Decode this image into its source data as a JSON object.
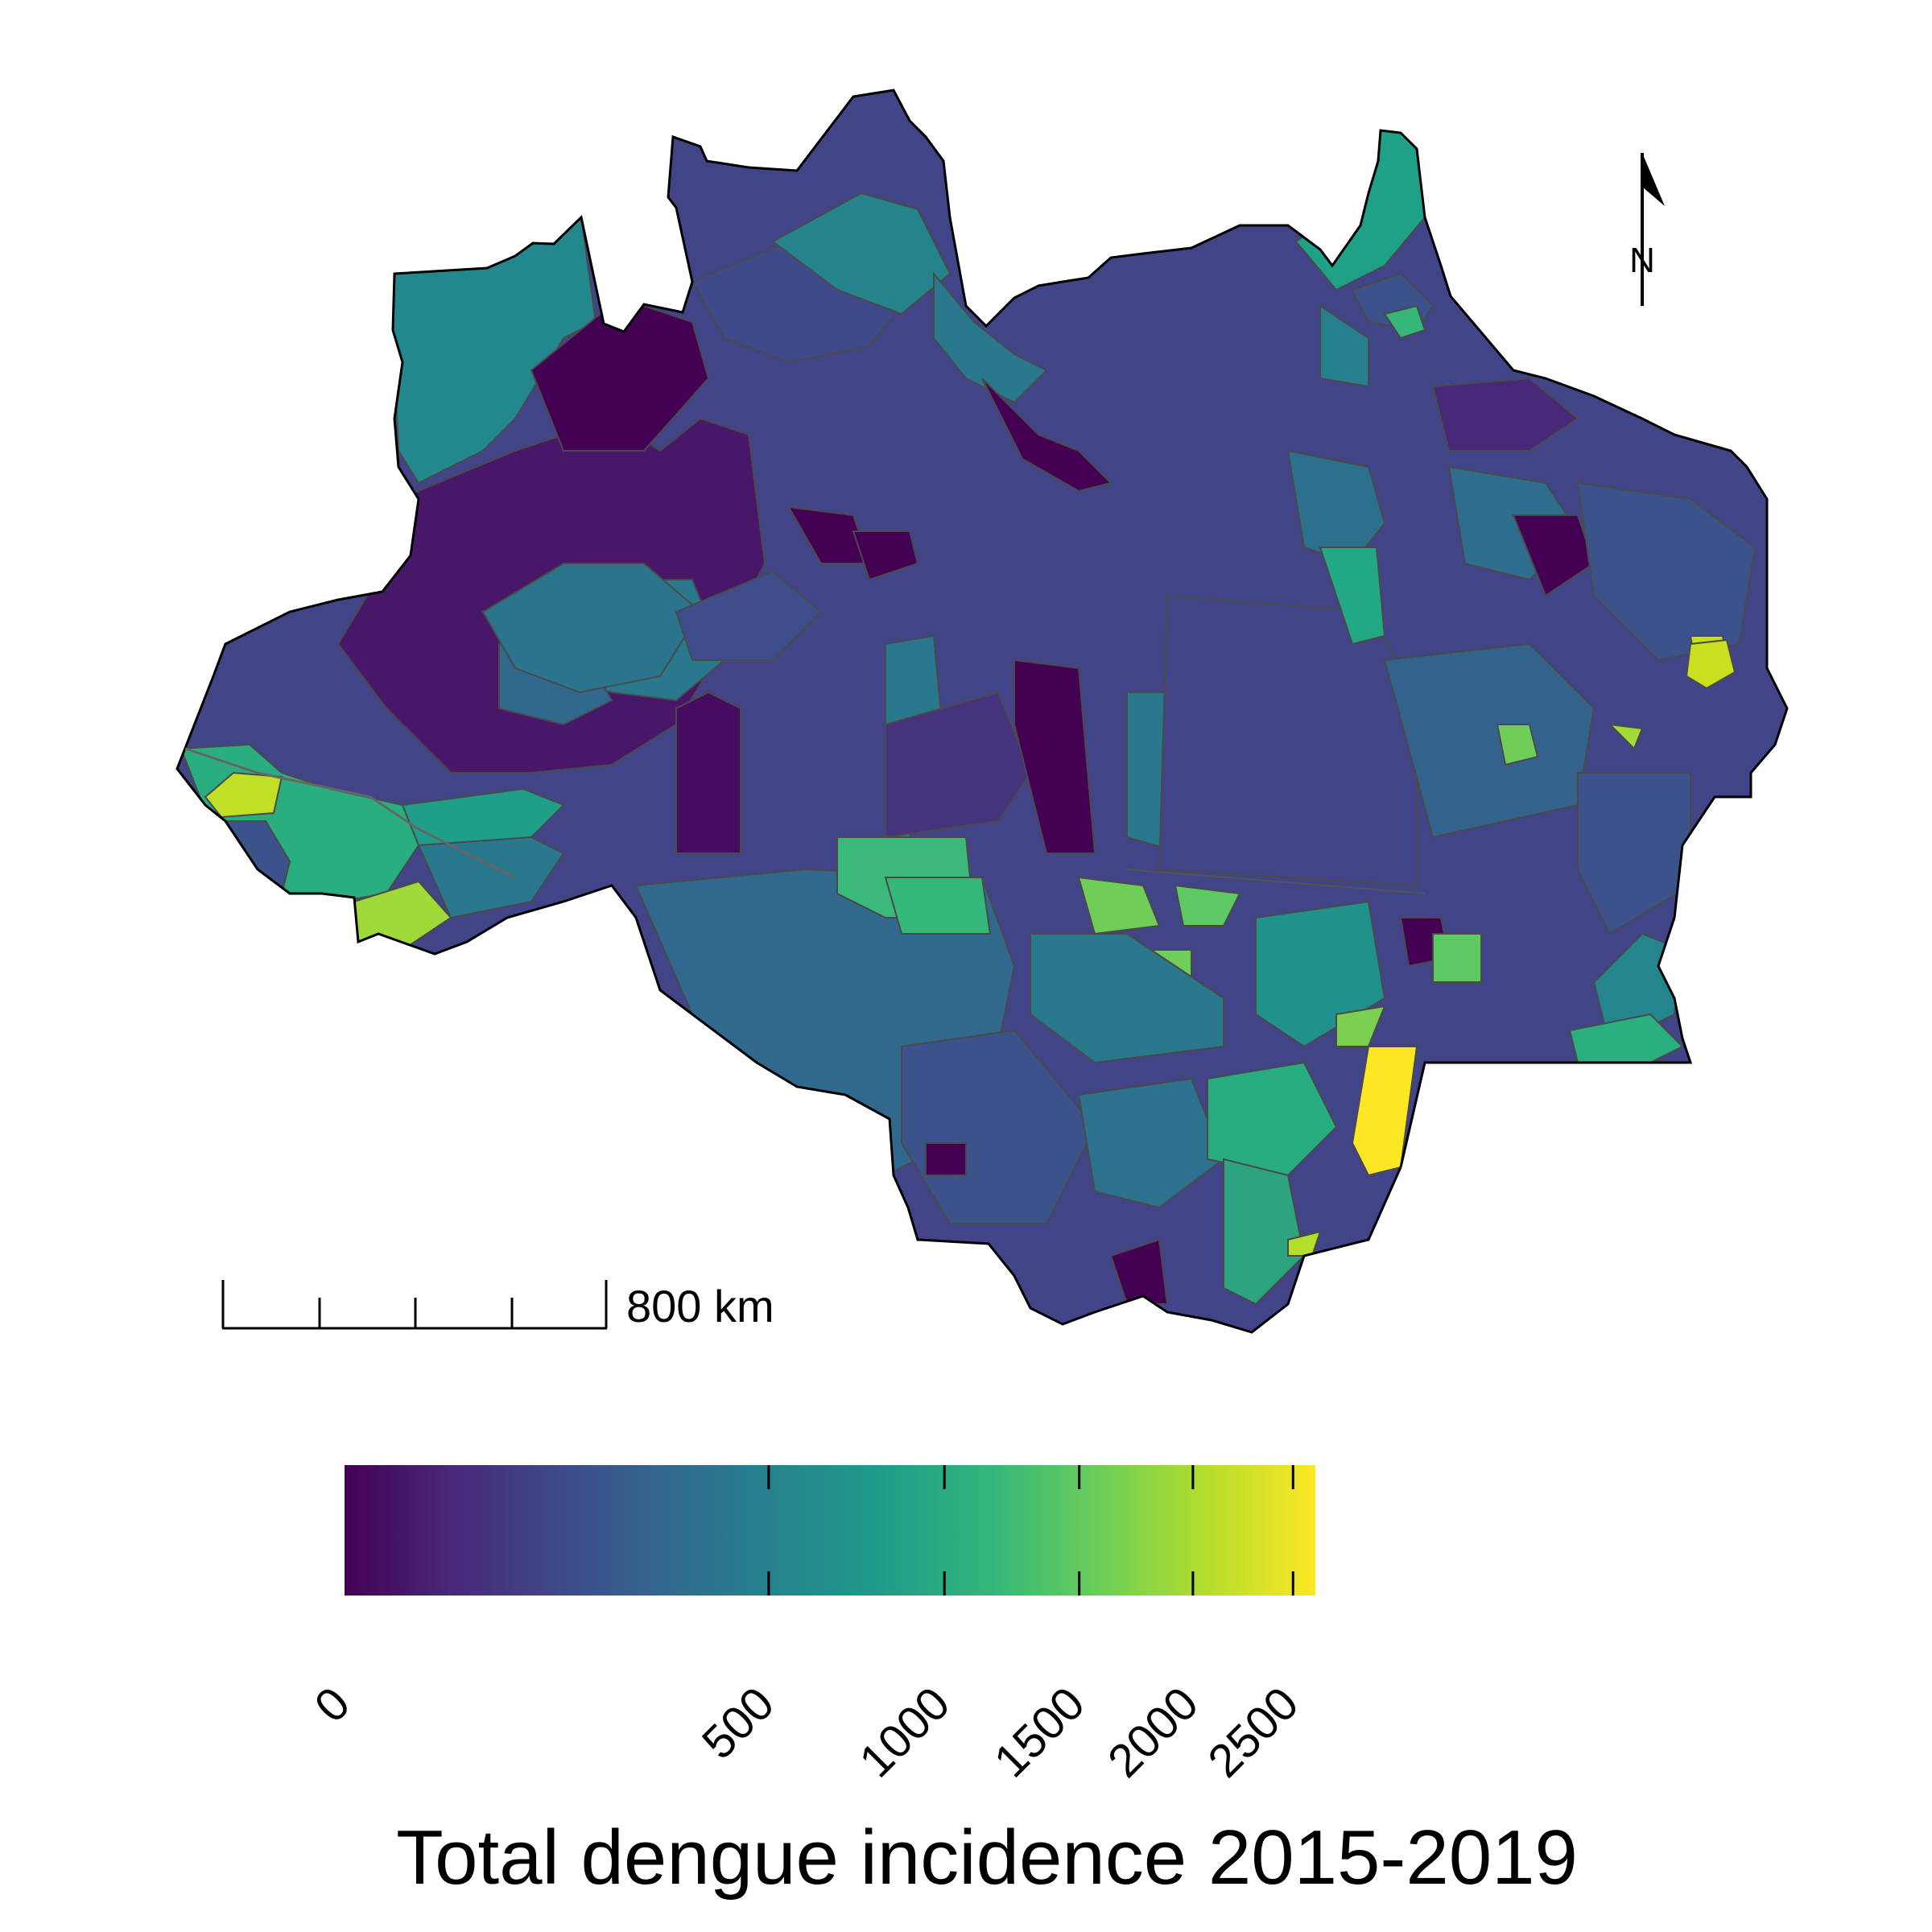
{
  "map": {
    "north_arrow_label": "N",
    "scale_bar_label": "800 km",
    "colors": {
      "palette": "viridis",
      "stops": [
        "#440154",
        "#482878",
        "#3e4989",
        "#31688e",
        "#26828e",
        "#1f9e89",
        "#35b779",
        "#6ece58",
        "#b5de2b",
        "#fde725"
      ],
      "border": "#4a4a4a"
    }
  },
  "legend": {
    "title": "Total dengue incidence 2015-2019",
    "scale": "sqrt",
    "domain": [
      0,
      2500
    ],
    "ticks": [
      {
        "value": 0,
        "label": "0"
      },
      {
        "value": 500,
        "label": "500"
      },
      {
        "value": 1000,
        "label": "1000"
      },
      {
        "value": 1500,
        "label": "1500"
      },
      {
        "value": 2000,
        "label": "2000"
      },
      {
        "value": 2500,
        "label": "2500"
      }
    ]
  }
}
